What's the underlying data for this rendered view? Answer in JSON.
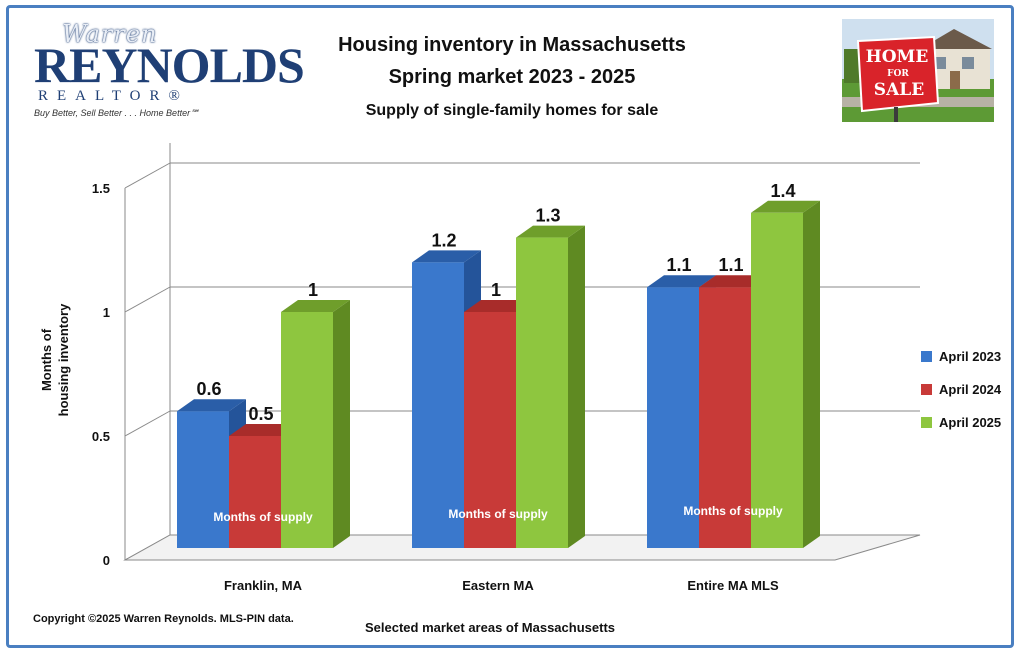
{
  "logo": {
    "script_text": "Warren",
    "main_text": "REYNOLDS",
    "sub_text": "REALTOR®",
    "tagline": "Buy Better, Sell Better . . . Home Better℠"
  },
  "photo": {
    "sign_line1": "HOME",
    "sign_line2": "FOR",
    "sign_line3": "SALE"
  },
  "copyright": "Copyright ©2025  Warren Reynolds.  MLS-PIN data.",
  "colors": {
    "frame": "#4a7fc1",
    "blue": "#3a78cc",
    "red": "#c83a38",
    "green": "#8ec63f"
  },
  "chart_data": {
    "type": "bar",
    "title": "Housing inventory in Massachusetts",
    "subtitle": "Spring market  2023 - 2025",
    "subtitle2": "Supply of single-family homes for sale",
    "xlabel": "Selected market areas of Massachusetts",
    "ylabel_line1": "Months of",
    "ylabel_line2": "housing inventory",
    "ylim": [
      0,
      1.5
    ],
    "y_ticks": [
      "0",
      "0.5",
      "1",
      "1.5"
    ],
    "grid": true,
    "legend_position": "right",
    "categories": [
      "Franklin, MA",
      "Eastern MA",
      "Entire MA MLS"
    ],
    "category_note": "Months of supply",
    "series": [
      {
        "name": "April 2023",
        "values": [
          0.6,
          1.2,
          1.1
        ],
        "labels": [
          "0.6",
          "1.2",
          "1.1"
        ]
      },
      {
        "name": "April 2024",
        "values": [
          0.5,
          1.0,
          1.1
        ],
        "labels": [
          "0.5",
          "1",
          "1.1"
        ]
      },
      {
        "name": "April 2025",
        "values": [
          1.0,
          1.3,
          1.4
        ],
        "labels": [
          "1",
          "1.3",
          "1.4"
        ]
      }
    ]
  }
}
